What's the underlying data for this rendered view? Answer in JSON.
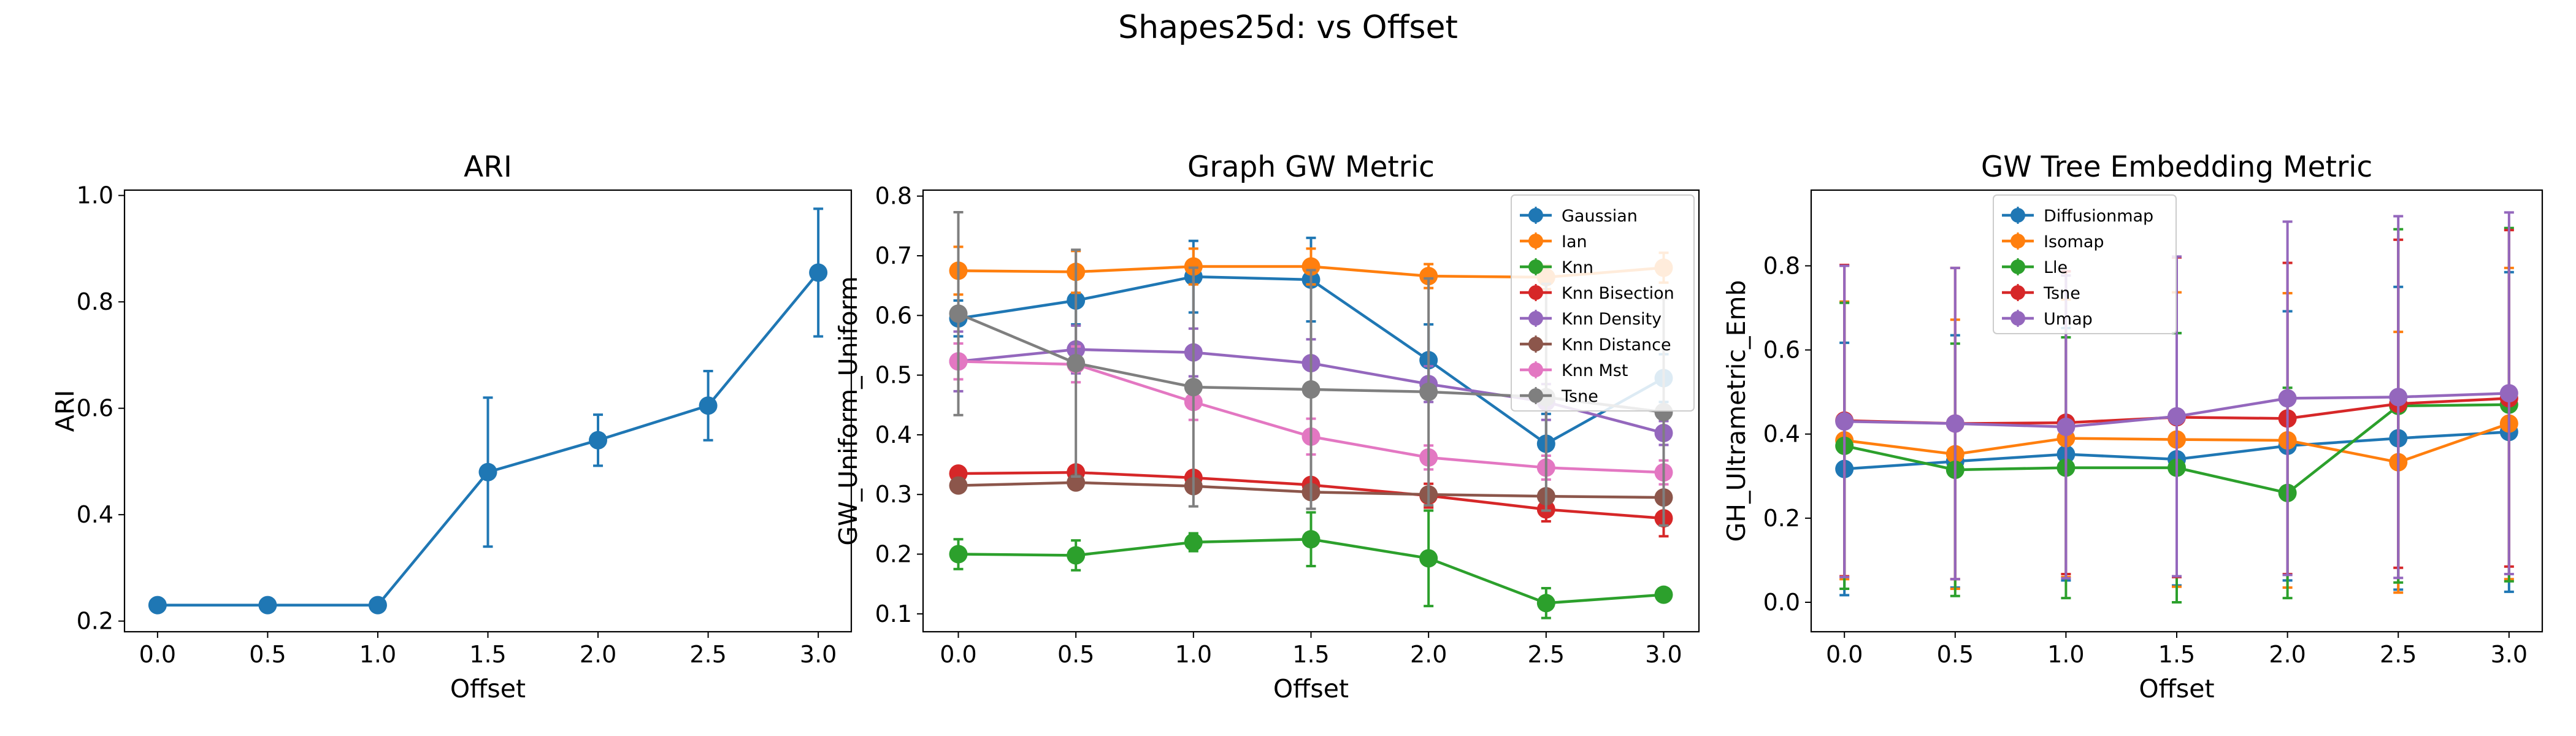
{
  "figure": {
    "title": "Shapes25d: vs Offset"
  },
  "chart_data": [
    {
      "type": "line",
      "title": "ARI",
      "xlabel": "Offset",
      "ylabel": "ARI",
      "x": [
        0.0,
        0.5,
        1.0,
        1.5,
        2.0,
        2.5,
        3.0
      ],
      "xticks": [
        0.0,
        0.5,
        1.0,
        1.5,
        2.0,
        2.5,
        3.0
      ],
      "xtick_labels": [
        "0.0",
        "0.5",
        "1.0",
        "1.5",
        "2.0",
        "2.5",
        "3.0"
      ],
      "yticks": [
        0.2,
        0.4,
        0.6,
        0.8,
        1.0
      ],
      "ytick_labels": [
        "0.2",
        "0.4",
        "0.6",
        "0.8",
        "1.0"
      ],
      "xlim": [
        -0.15,
        3.15
      ],
      "ylim": [
        0.18,
        1.01
      ],
      "legend": null,
      "series": [
        {
          "color": "#1f77b4",
          "values": [
            0.23,
            0.23,
            0.23,
            0.48,
            0.54,
            0.605,
            0.855
          ],
          "errors": [
            0.0,
            0.0,
            0.0,
            0.14,
            0.048,
            0.065,
            0.12
          ]
        }
      ]
    },
    {
      "type": "line",
      "title": "Graph GW Metric",
      "xlabel": "Offset",
      "ylabel": "GW_Uniform_Uniform",
      "x": [
        0.0,
        0.5,
        1.0,
        1.5,
        2.0,
        2.5,
        3.0
      ],
      "xticks": [
        0.0,
        0.5,
        1.0,
        1.5,
        2.0,
        2.5,
        3.0
      ],
      "xtick_labels": [
        "0.0",
        "0.5",
        "1.0",
        "1.5",
        "2.0",
        "2.5",
        "3.0"
      ],
      "yticks": [
        0.1,
        0.2,
        0.3,
        0.4,
        0.5,
        0.6,
        0.7,
        0.8
      ],
      "ytick_labels": [
        "0.1",
        "0.2",
        "0.3",
        "0.4",
        "0.5",
        "0.6",
        "0.7",
        "0.8"
      ],
      "xlim": [
        -0.15,
        3.15
      ],
      "ylim": [
        0.07,
        0.81
      ],
      "legend": "top-right",
      "series": [
        {
          "name": "Gaussian",
          "color": "#1f77b4",
          "values": [
            0.595,
            0.625,
            0.665,
            0.66,
            0.525,
            0.385,
            0.495
          ],
          "errors": [
            0.03,
            0.04,
            0.06,
            0.07,
            0.06,
            0.05,
            0.04
          ]
        },
        {
          "name": "Ian",
          "color": "#ff7f0e",
          "values": [
            0.675,
            0.673,
            0.682,
            0.682,
            0.666,
            0.664,
            0.68
          ],
          "errors": [
            0.04,
            0.035,
            0.03,
            0.03,
            0.02,
            0.02,
            0.025
          ]
        },
        {
          "name": "Knn",
          "color": "#2ca02c",
          "values": [
            0.2,
            0.198,
            0.22,
            0.225,
            0.193,
            0.118,
            0.132
          ],
          "errors": [
            0.025,
            0.025,
            0.015,
            0.045,
            0.08,
            0.025,
            0.01
          ]
        },
        {
          "name": "Knn Bisection",
          "color": "#d62728",
          "values": [
            0.335,
            0.337,
            0.328,
            0.316,
            0.298,
            0.275,
            0.26
          ],
          "errors": [
            0.01,
            0.01,
            0.01,
            0.01,
            0.02,
            0.02,
            0.03
          ]
        },
        {
          "name": "Knn Density",
          "color": "#9467bd",
          "values": [
            0.523,
            0.543,
            0.538,
            0.52,
            0.485,
            0.455,
            0.403
          ],
          "errors": [
            0.05,
            0.04,
            0.04,
            0.04,
            0.03,
            0.03,
            0.02
          ]
        },
        {
          "name": "Knn Distance",
          "color": "#8c564b",
          "values": [
            0.315,
            0.32,
            0.314,
            0.304,
            0.3,
            0.297,
            0.295
          ],
          "errors": [
            0.01,
            0.01,
            0.01,
            0.01,
            0.01,
            0.01,
            0.01
          ]
        },
        {
          "name": "Knn Mst",
          "color": "#e377c2",
          "values": [
            0.523,
            0.518,
            0.455,
            0.397,
            0.362,
            0.345,
            0.337
          ],
          "errors": [
            0.03,
            0.03,
            0.03,
            0.03,
            0.02,
            0.02,
            0.02
          ]
        },
        {
          "name": "Tsne",
          "color": "#7f7f7f",
          "values": [
            0.603,
            0.52,
            0.48,
            0.476,
            0.472,
            0.463,
            0.438
          ],
          "errors": [
            0.17,
            0.19,
            0.2,
            0.2,
            0.19,
            0.19,
            0.19
          ]
        }
      ]
    },
    {
      "type": "line",
      "title": "GW Tree Embedding Metric",
      "xlabel": "Offset",
      "ylabel": "GH_Ultrametric_Emb",
      "x": [
        0.0,
        0.5,
        1.0,
        1.5,
        2.0,
        2.5,
        3.0
      ],
      "xticks": [
        0.0,
        0.5,
        1.0,
        1.5,
        2.0,
        2.5,
        3.0
      ],
      "xtick_labels": [
        "0.0",
        "0.5",
        "1.0",
        "1.5",
        "2.0",
        "2.5",
        "3.0"
      ],
      "yticks": [
        0.0,
        0.2,
        0.4,
        0.6,
        0.8
      ],
      "ytick_labels": [
        "0.0",
        "0.2",
        "0.4",
        "0.6",
        "0.8"
      ],
      "xlim": [
        -0.15,
        3.15
      ],
      "ylim": [
        -0.07,
        0.98
      ],
      "legend": "top-center",
      "series": [
        {
          "name": "Diffusionmap",
          "color": "#1f77b4",
          "values": [
            0.317,
            0.335,
            0.352,
            0.34,
            0.372,
            0.39,
            0.405
          ],
          "errors": [
            0.3,
            0.3,
            0.3,
            0.3,
            0.32,
            0.36,
            0.38
          ]
        },
        {
          "name": "Isomap",
          "color": "#ff7f0e",
          "values": [
            0.385,
            0.352,
            0.39,
            0.387,
            0.385,
            0.333,
            0.425
          ],
          "errors": [
            0.33,
            0.32,
            0.33,
            0.35,
            0.35,
            0.31,
            0.37
          ]
        },
        {
          "name": "Lle",
          "color": "#2ca02c",
          "values": [
            0.372,
            0.315,
            0.32,
            0.32,
            0.26,
            0.467,
            0.47
          ],
          "errors": [
            0.34,
            0.3,
            0.31,
            0.32,
            0.25,
            0.42,
            0.42
          ]
        },
        {
          "name": "Tsne",
          "color": "#d62728",
          "values": [
            0.432,
            0.425,
            0.427,
            0.44,
            0.437,
            0.472,
            0.485
          ],
          "errors": [
            0.37,
            0.37,
            0.36,
            0.38,
            0.37,
            0.39,
            0.4
          ]
        },
        {
          "name": "Umap",
          "color": "#9467bd",
          "values": [
            0.43,
            0.425,
            0.417,
            0.442,
            0.485,
            0.488,
            0.497
          ],
          "errors": [
            0.37,
            0.37,
            0.36,
            0.38,
            0.42,
            0.43,
            0.43
          ]
        }
      ]
    }
  ]
}
